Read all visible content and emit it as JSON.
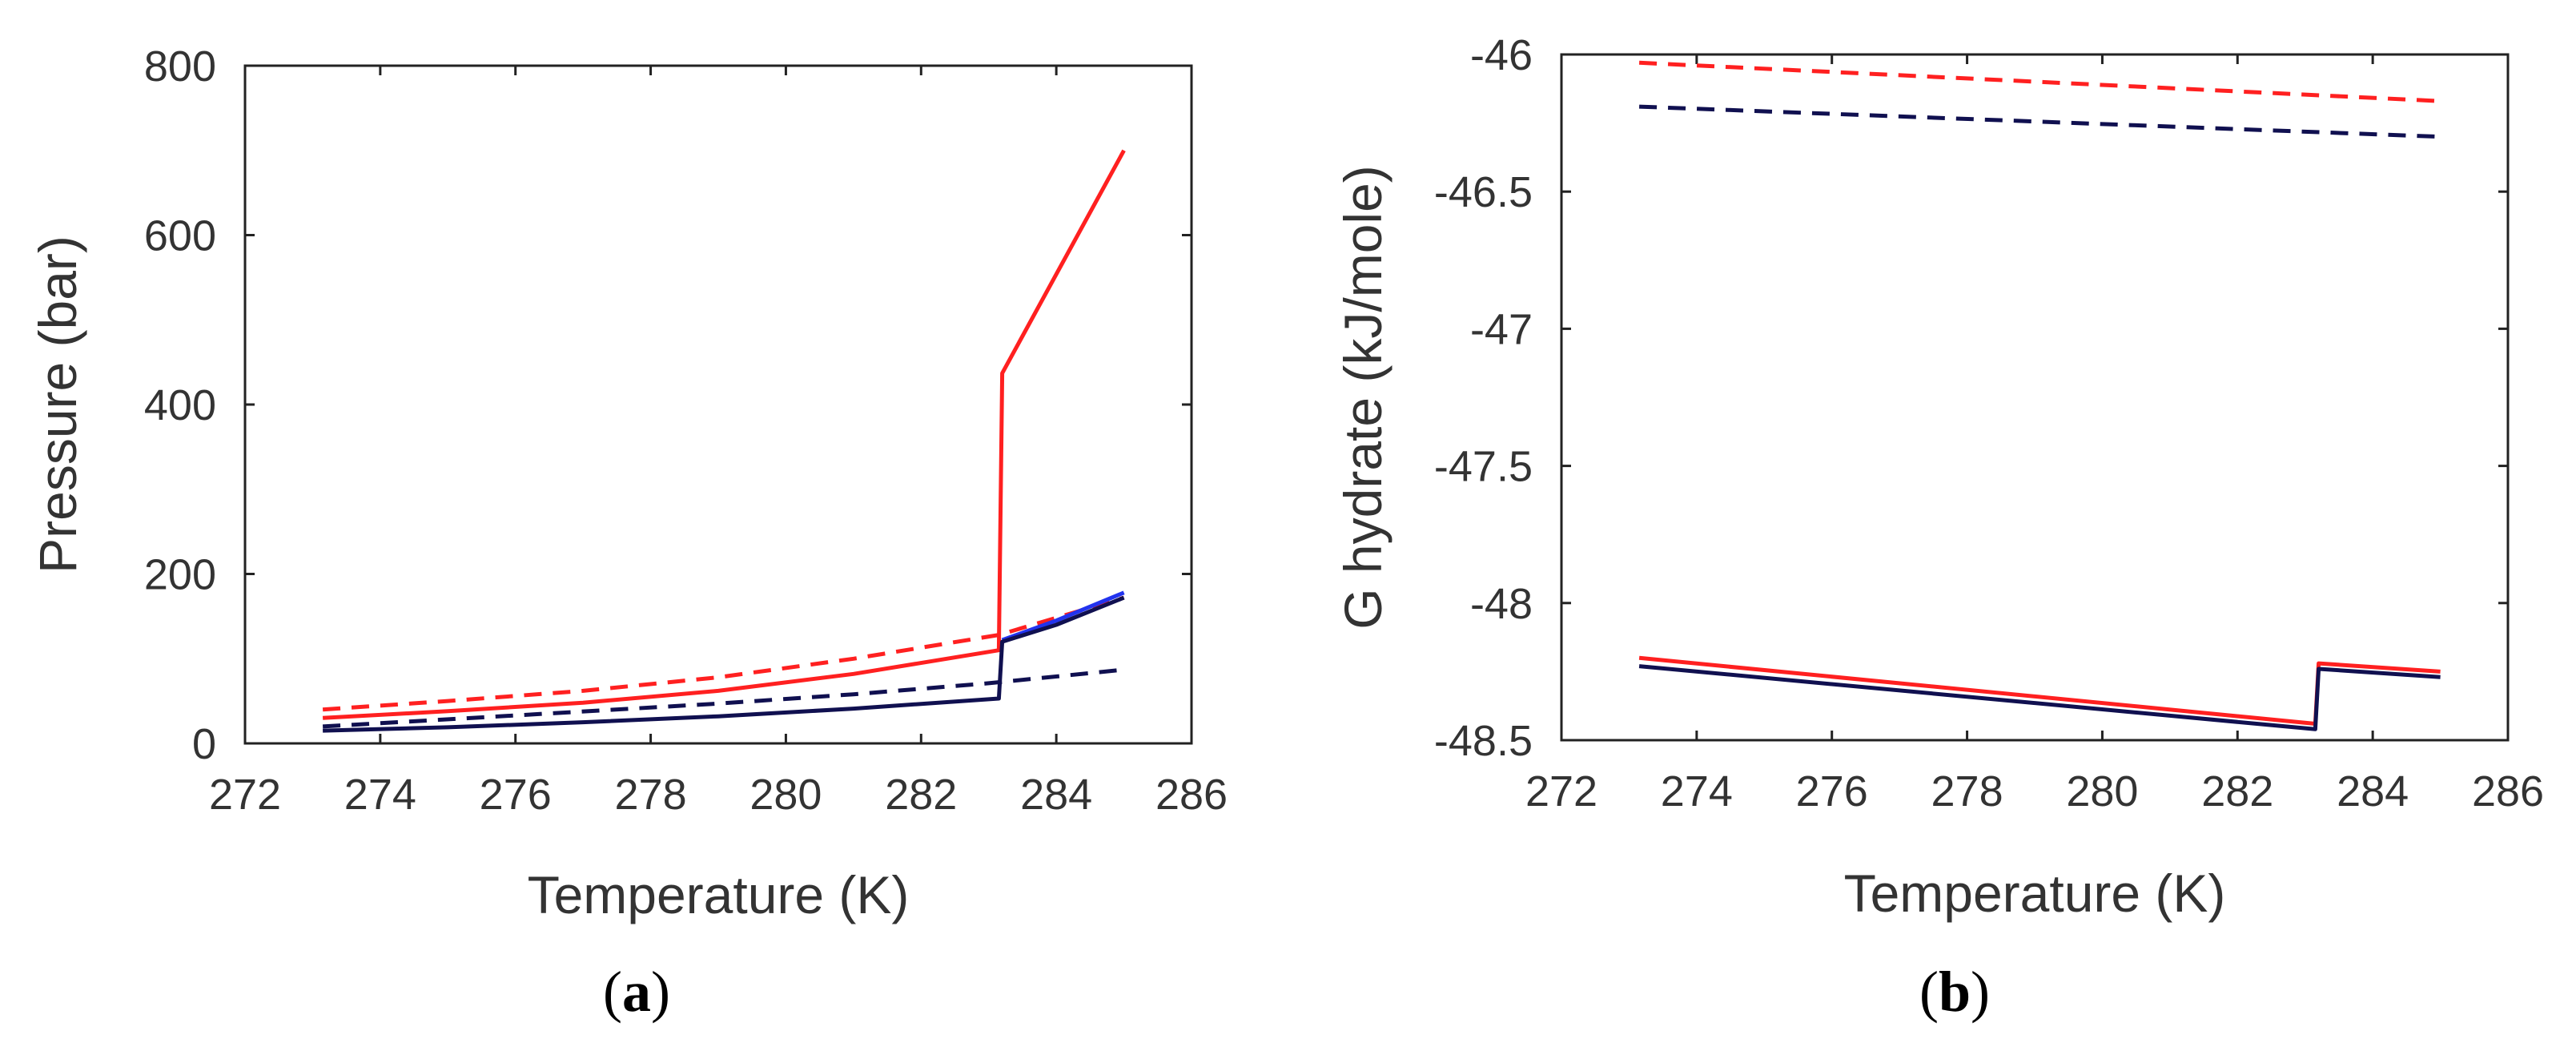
{
  "chart_data": [
    {
      "type": "line",
      "panel_label": {
        "open": "(",
        "letter": "a",
        "close": ")"
      },
      "xlabel": "Temperature (K)",
      "ylabel": "Pressure (bar)",
      "xlim": [
        272,
        286
      ],
      "ylim": [
        0,
        800
      ],
      "xticks": [
        272,
        274,
        276,
        278,
        280,
        282,
        284,
        286
      ],
      "yticks": [
        0,
        200,
        400,
        600,
        800
      ],
      "series": [
        {
          "name": "red-solid",
          "color": "#ff2020",
          "style": "solid",
          "x": [
            273.15,
            275,
            277,
            279,
            281,
            283.15,
            283.2,
            285
          ],
          "y": [
            30,
            38,
            48,
            62,
            82,
            110,
            437,
            700
          ]
        },
        {
          "name": "red-dashed",
          "color": "#ff2020",
          "style": "dashed",
          "x": [
            273.15,
            275,
            277,
            279,
            281,
            283.15,
            285
          ],
          "y": [
            40,
            50,
            62,
            78,
            100,
            128,
            172
          ]
        },
        {
          "name": "blue-solid",
          "color": "#2233ee",
          "style": "solid",
          "x": [
            283.2,
            284,
            285
          ],
          "y": [
            122,
            145,
            178
          ]
        },
        {
          "name": "navy-dashed",
          "color": "#101050",
          "style": "dashed",
          "x": [
            273.15,
            276,
            279,
            281,
            283,
            285
          ],
          "y": [
            20,
            33,
            47,
            58,
            71,
            87
          ]
        },
        {
          "name": "navy-solid",
          "color": "#101050",
          "style": "solid",
          "x": [
            273.15,
            275,
            277,
            279,
            281,
            283.15,
            283.2,
            284,
            285
          ],
          "y": [
            15,
            19,
            25,
            32,
            41,
            53,
            120,
            140,
            172
          ]
        }
      ]
    },
    {
      "type": "line",
      "panel_label": {
        "open": "(",
        "letter": "b",
        "close": ")"
      },
      "xlabel": "Temperature (K)",
      "ylabel": "G hydrate (kJ/mole)",
      "xlim": [
        272,
        286
      ],
      "ylim": [
        -48.5,
        -46
      ],
      "xticks": [
        272,
        274,
        276,
        278,
        280,
        282,
        284,
        286
      ],
      "yticks": [
        -46,
        -46.5,
        -47,
        -47.5,
        -48,
        -48.5
      ],
      "series": [
        {
          "name": "red-dashed",
          "color": "#ff2020",
          "style": "dashed",
          "x": [
            273.15,
            285
          ],
          "y": [
            -46.03,
            -46.17
          ]
        },
        {
          "name": "navy-dashed",
          "color": "#101050",
          "style": "dashed",
          "x": [
            273.15,
            285
          ],
          "y": [
            -46.19,
            -46.3
          ]
        },
        {
          "name": "red-solid",
          "color": "#ff2020",
          "style": "solid",
          "x": [
            273.15,
            283.15,
            283.2,
            285
          ],
          "y": [
            -48.2,
            -48.44,
            -48.22,
            -48.25
          ]
        },
        {
          "name": "navy-solid",
          "color": "#101050",
          "style": "solid",
          "x": [
            273.15,
            283.15,
            283.2,
            285
          ],
          "y": [
            -48.23,
            -48.46,
            -48.24,
            -48.27
          ]
        }
      ]
    }
  ]
}
